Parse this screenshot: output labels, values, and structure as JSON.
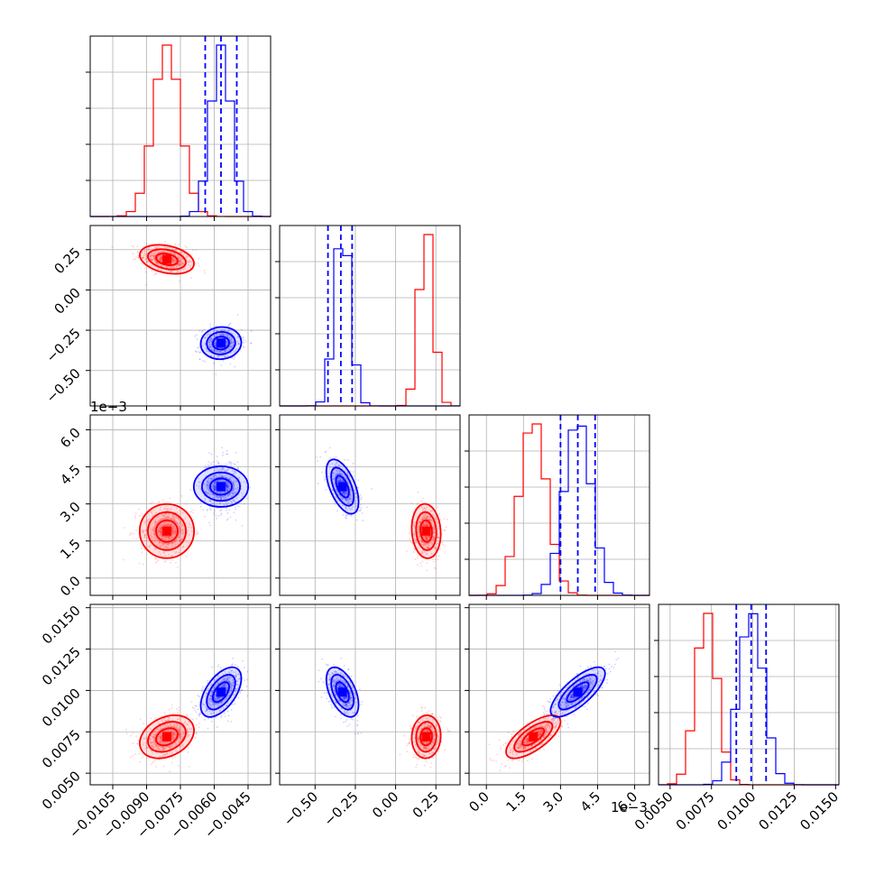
{
  "chart_data": {
    "type": "corner",
    "parameters": 4,
    "grid": true,
    "colors": {
      "red": "#ff0000",
      "blue": "#0000ff"
    },
    "axes": [
      {
        "range": [
          -0.0115,
          -0.0035
        ],
        "ticks": [
          -0.0105,
          -0.009,
          -0.0075,
          -0.006,
          -0.0045
        ],
        "tick_labels": [
          "−0.0105",
          "−0.0090",
          "−0.0075",
          "−0.0060",
          "−0.0045"
        ]
      },
      {
        "range": [
          -0.72,
          0.4
        ],
        "ticks": [
          -0.5,
          -0.25,
          0.0,
          0.25
        ],
        "tick_labels": [
          "−0.50",
          "−0.25",
          "0.00",
          "0.25"
        ]
      },
      {
        "range": [
          -0.0007,
          0.0066
        ],
        "ticks": [
          0.0,
          0.0015,
          0.003,
          0.0045,
          0.006
        ],
        "tick_labels": [
          "0.0",
          "1.5",
          "3.0",
          "4.5",
          "6.0"
        ],
        "offset_label": "1e−3"
      },
      {
        "range": [
          0.0043,
          0.0152
        ],
        "ticks": [
          0.005,
          0.0075,
          0.01,
          0.0125,
          0.015
        ],
        "tick_labels": [
          "0.0050",
          "0.0075",
          "0.0100",
          "0.0125",
          "0.0150"
        ]
      }
    ],
    "series": [
      {
        "color": "red",
        "means": [
          -0.0081,
          0.19,
          0.0019,
          0.0072
        ],
        "sds": [
          0.0006,
          0.045,
          0.00055,
          0.00065
        ]
      },
      {
        "color": "blue",
        "means": [
          -0.0057,
          -0.33,
          0.0037,
          0.0099
        ],
        "sds": [
          0.00045,
          0.05,
          0.00055,
          0.00075
        ]
      }
    ],
    "quantile_lines": [
      [
        -0.0064,
        -0.0057,
        -0.005
      ],
      [
        -0.42,
        -0.34,
        -0.27
      ],
      [
        0.003,
        0.0037,
        0.0044
      ],
      [
        0.009,
        0.0099,
        0.0108
      ]
    ]
  }
}
